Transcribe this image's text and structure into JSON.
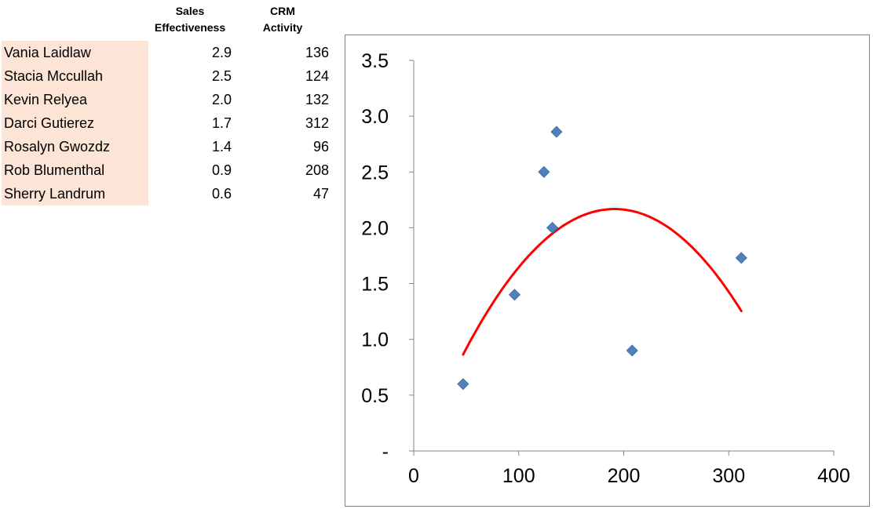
{
  "table": {
    "headers": {
      "sales_effectiveness": [
        "Sales",
        "Effectiveness"
      ],
      "crm_activity": [
        "CRM",
        "Activity"
      ]
    },
    "rows": [
      {
        "name": "Vania Laidlaw",
        "sales_effectiveness": "2.9",
        "crm_activity": "136"
      },
      {
        "name": "Stacia Mccullah",
        "sales_effectiveness": "2.5",
        "crm_activity": "124"
      },
      {
        "name": "Kevin Relyea",
        "sales_effectiveness": "2.0",
        "crm_activity": "132"
      },
      {
        "name": "Darci Gutierez",
        "sales_effectiveness": "1.7",
        "crm_activity": "312"
      },
      {
        "name": "Rosalyn Gwozdz",
        "sales_effectiveness": "1.4",
        "crm_activity": "96"
      },
      {
        "name": "Rob Blumenthal",
        "sales_effectiveness": "0.9",
        "crm_activity": "208"
      },
      {
        "name": "Sherry Landrum",
        "sales_effectiveness": "0.6",
        "crm_activity": "47"
      }
    ]
  },
  "chart_data": {
    "type": "scatter",
    "title": "",
    "xlabel": "",
    "ylabel": "",
    "xlim": [
      0,
      400
    ],
    "ylim": [
      0,
      3.5
    ],
    "x_ticks": [
      0,
      100,
      200,
      300,
      400
    ],
    "x_tick_labels": [
      "0",
      "100",
      "200",
      "300",
      "400"
    ],
    "y_ticks": [
      0,
      0.5,
      1.0,
      1.5,
      2.0,
      2.5,
      3.0,
      3.5
    ],
    "y_tick_labels": [
      "-",
      "0.5",
      "1.0",
      "1.5",
      "2.0",
      "2.5",
      "3.0",
      "3.5"
    ],
    "grid": false,
    "legend": "none",
    "series": [
      {
        "marker": "diamond",
        "color": "#4f81bd",
        "points": [
          [
            136,
            2.86
          ],
          [
            124,
            2.5
          ],
          [
            132,
            2.0
          ],
          [
            312,
            1.73
          ],
          [
            96,
            1.4
          ],
          [
            208,
            0.9
          ],
          [
            47,
            0.6
          ]
        ]
      }
    ],
    "trendline": {
      "type": "polynomial-order-2",
      "color": "#ff0000",
      "x_range": [
        47,
        312
      ],
      "coefficients": [
        -6.27e-05,
        0.02398,
        -0.1248
      ]
    }
  }
}
